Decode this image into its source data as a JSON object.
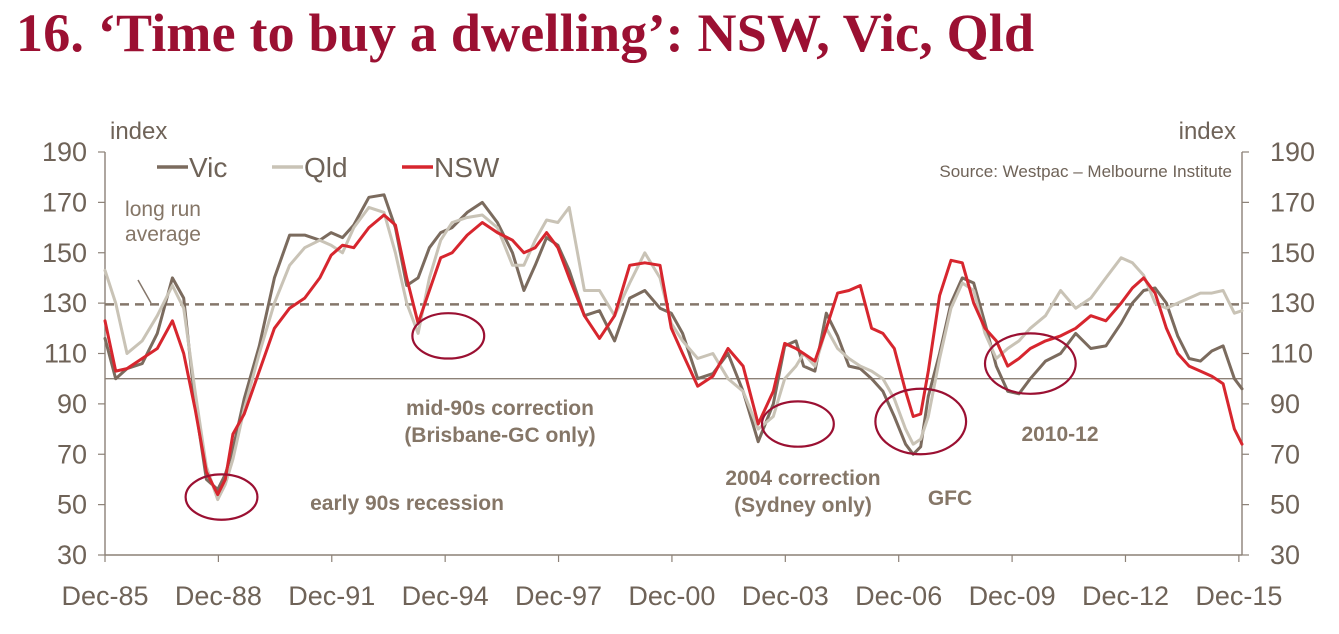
{
  "title": "16. ‘Time to buy a dwelling’: NSW, Vic, Qld",
  "chart_data": {
    "type": "line",
    "y_label_left": "index",
    "y_label_right": "index",
    "ylim": [
      30,
      190
    ],
    "yticks": [
      30,
      50,
      70,
      90,
      110,
      130,
      150,
      170,
      190
    ],
    "xlim": [
      1985.917,
      2016.0
    ],
    "xticks": [
      {
        "x": 1985.917,
        "label": "Dec-85"
      },
      {
        "x": 1988.917,
        "label": "Dec-88"
      },
      {
        "x": 1991.917,
        "label": "Dec-91"
      },
      {
        "x": 1994.917,
        "label": "Dec-94"
      },
      {
        "x": 1997.917,
        "label": "Dec-97"
      },
      {
        "x": 2000.917,
        "label": "Dec-00"
      },
      {
        "x": 2003.917,
        "label": "Dec-03"
      },
      {
        "x": 2006.917,
        "label": "Dec-06"
      },
      {
        "x": 2009.917,
        "label": "Dec-09"
      },
      {
        "x": 2012.917,
        "label": "Dec-12"
      },
      {
        "x": 2015.917,
        "label": "Dec-15"
      }
    ],
    "source": "Source: Westpac – Melbourne Institute",
    "reference_lines": [
      {
        "name": "long run average",
        "label_lines": [
          "long run",
          "average"
        ],
        "y": 129.5,
        "style": "dashed"
      },
      {
        "name": "neutral",
        "y": 100,
        "style": "solid"
      }
    ],
    "annotations": [
      {
        "lines": [
          "early 90s recession"
        ],
        "cx": 1989.0,
        "cy": 53,
        "rx": 0.95,
        "ry": 9
      },
      {
        "lines": [
          "mid-90s correction",
          "(Brisbane-GC only)"
        ],
        "cx": 1995.0,
        "cy": 117,
        "rx": 0.95,
        "ry": 9
      },
      {
        "lines": [
          "2004 correction",
          "(Sydney only)"
        ],
        "cx": 2004.25,
        "cy": 82,
        "rx": 0.95,
        "ry": 9
      },
      {
        "lines": [
          "GFC"
        ],
        "cx": 2007.5,
        "cy": 83,
        "rx": 1.2,
        "ry": 13
      },
      {
        "lines": [
          "2010-12"
        ],
        "cx": 2010.4,
        "cy": 106,
        "rx": 1.2,
        "ry": 12
      }
    ],
    "series": [
      {
        "name": "Vic",
        "color": "#7b6b5e",
        "x": [
          1985.917,
          1986.2,
          1986.5,
          1986.9,
          1987.3,
          1987.7,
          1988.0,
          1988.3,
          1988.6,
          1988.9,
          1989.1,
          1989.3,
          1989.6,
          1990.0,
          1990.4,
          1990.8,
          1991.2,
          1991.6,
          1991.9,
          1992.2,
          1992.5,
          1992.9,
          1993.3,
          1993.6,
          1993.9,
          1994.2,
          1994.5,
          1994.8,
          1995.1,
          1995.5,
          1995.9,
          1996.3,
          1996.7,
          1997.0,
          1997.3,
          1997.6,
          1997.9,
          1998.2,
          1998.6,
          1999.0,
          1999.4,
          1999.8,
          2000.2,
          2000.6,
          2000.9,
          2001.2,
          2001.6,
          2002.0,
          2002.4,
          2002.8,
          2003.2,
          2003.6,
          2003.9,
          2004.2,
          2004.4,
          2004.7,
          2005.0,
          2005.3,
          2005.6,
          2005.9,
          2006.2,
          2006.5,
          2006.8,
          2007.1,
          2007.3,
          2007.5,
          2007.7,
          2008.0,
          2008.3,
          2008.6,
          2008.9,
          2009.2,
          2009.5,
          2009.8,
          2010.1,
          2010.4,
          2010.8,
          2011.2,
          2011.6,
          2012.0,
          2012.4,
          2012.8,
          2013.1,
          2013.4,
          2013.7,
          2014.0,
          2014.3,
          2014.6,
          2014.9,
          2015.2,
          2015.5,
          2015.8,
          2016.0
        ],
        "y": [
          116,
          100,
          104,
          106,
          118,
          140,
          132,
          90,
          60,
          56,
          62,
          72,
          92,
          113,
          140,
          157,
          157,
          155,
          158,
          156,
          161,
          172,
          173,
          160,
          137,
          140,
          152,
          158,
          160,
          166,
          170,
          162,
          150,
          135,
          145,
          156,
          153,
          143,
          125,
          127,
          115,
          132,
          135,
          128,
          126,
          118,
          100,
          102,
          110,
          95,
          75,
          90,
          113,
          115,
          105,
          103,
          126,
          117,
          105,
          104,
          100,
          95,
          85,
          74,
          70,
          73,
          93,
          110,
          130,
          140,
          138,
          122,
          105,
          95,
          94,
          100,
          107,
          110,
          118,
          112,
          113,
          122,
          130,
          135,
          136,
          130,
          117,
          108,
          107,
          111,
          113,
          100,
          96
        ]
      },
      {
        "name": "Qld",
        "color": "#c9c3b6",
        "x": [
          1985.917,
          1986.2,
          1986.5,
          1986.9,
          1987.3,
          1987.7,
          1988.0,
          1988.3,
          1988.6,
          1988.9,
          1989.1,
          1989.3,
          1989.6,
          1990.0,
          1990.4,
          1990.8,
          1991.2,
          1991.6,
          1991.9,
          1992.2,
          1992.5,
          1992.9,
          1993.3,
          1993.6,
          1993.9,
          1994.2,
          1994.5,
          1994.8,
          1995.1,
          1995.5,
          1995.9,
          1996.3,
          1996.7,
          1997.0,
          1997.3,
          1997.6,
          1997.9,
          1998.2,
          1998.6,
          1999.0,
          1999.4,
          1999.8,
          2000.2,
          2000.6,
          2000.9,
          2001.2,
          2001.6,
          2002.0,
          2002.4,
          2002.8,
          2003.2,
          2003.6,
          2003.9,
          2004.2,
          2004.4,
          2004.7,
          2005.0,
          2005.3,
          2005.6,
          2005.9,
          2006.2,
          2006.5,
          2006.8,
          2007.1,
          2007.3,
          2007.5,
          2007.7,
          2008.0,
          2008.3,
          2008.6,
          2008.9,
          2009.2,
          2009.5,
          2009.8,
          2010.1,
          2010.4,
          2010.8,
          2011.2,
          2011.6,
          2012.0,
          2012.4,
          2012.8,
          2013.1,
          2013.4,
          2013.7,
          2014.0,
          2014.3,
          2014.6,
          2014.9,
          2015.2,
          2015.5,
          2015.8,
          2016.0
        ],
        "y": [
          143,
          130,
          110,
          115,
          125,
          137,
          128,
          95,
          65,
          52,
          58,
          68,
          88,
          110,
          130,
          145,
          152,
          155,
          153,
          150,
          160,
          168,
          166,
          150,
          130,
          118,
          140,
          155,
          162,
          164,
          165,
          160,
          145,
          145,
          155,
          163,
          162,
          168,
          135,
          135,
          125,
          138,
          150,
          140,
          122,
          115,
          108,
          110,
          100,
          95,
          80,
          85,
          100,
          105,
          110,
          105,
          120,
          112,
          108,
          105,
          103,
          100,
          92,
          80,
          74,
          76,
          85,
          108,
          128,
          138,
          135,
          118,
          108,
          112,
          115,
          120,
          125,
          135,
          128,
          132,
          140,
          148,
          146,
          141,
          130,
          128,
          130,
          132,
          134,
          134,
          135,
          126,
          127
        ]
      },
      {
        "name": "NSW",
        "color": "#d7262e",
        "x": [
          1985.917,
          1986.2,
          1986.5,
          1986.9,
          1987.3,
          1987.7,
          1988.0,
          1988.3,
          1988.6,
          1988.9,
          1989.1,
          1989.3,
          1989.6,
          1990.0,
          1990.4,
          1990.8,
          1991.2,
          1991.6,
          1991.9,
          1992.2,
          1992.5,
          1992.9,
          1993.3,
          1993.6,
          1993.9,
          1994.2,
          1994.5,
          1994.8,
          1995.1,
          1995.5,
          1995.9,
          1996.3,
          1996.7,
          1997.0,
          1997.3,
          1997.6,
          1997.9,
          1998.2,
          1998.6,
          1999.0,
          1999.4,
          1999.8,
          2000.2,
          2000.6,
          2000.9,
          2001.2,
          2001.6,
          2002.0,
          2002.4,
          2002.8,
          2003.2,
          2003.6,
          2003.9,
          2004.2,
          2004.4,
          2004.7,
          2005.0,
          2005.3,
          2005.6,
          2005.9,
          2006.2,
          2006.5,
          2006.8,
          2007.1,
          2007.3,
          2007.5,
          2007.7,
          2008.0,
          2008.3,
          2008.6,
          2008.9,
          2009.2,
          2009.5,
          2009.8,
          2010.1,
          2010.4,
          2010.8,
          2011.2,
          2011.6,
          2012.0,
          2012.4,
          2012.8,
          2013.1,
          2013.4,
          2013.7,
          2014.0,
          2014.3,
          2014.6,
          2014.9,
          2015.2,
          2015.5,
          2015.8,
          2016.0
        ],
        "y": [
          123,
          103,
          104,
          108,
          112,
          123,
          110,
          88,
          63,
          54,
          60,
          78,
          86,
          103,
          120,
          128,
          132,
          140,
          149,
          153,
          152,
          160,
          165,
          161,
          140,
          122,
          135,
          148,
          150,
          157,
          162,
          158,
          155,
          150,
          152,
          158,
          152,
          140,
          125,
          116,
          125,
          145,
          146,
          145,
          120,
          110,
          97,
          101,
          112,
          105,
          82,
          95,
          114,
          112,
          110,
          107,
          120,
          134,
          135,
          137,
          120,
          118,
          112,
          95,
          85,
          86,
          103,
          133,
          147,
          146,
          130,
          120,
          115,
          105,
          108,
          112,
          115,
          117,
          120,
          125,
          123,
          130,
          136,
          140,
          134,
          120,
          110,
          105,
          103,
          101,
          98,
          80,
          74
        ]
      }
    ]
  }
}
